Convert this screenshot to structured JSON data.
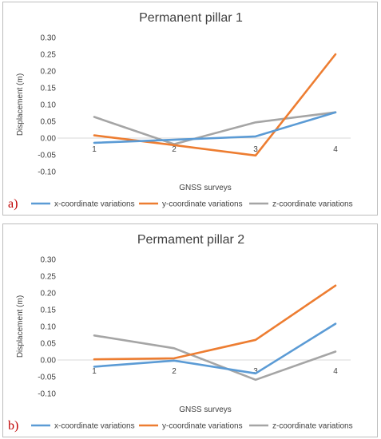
{
  "chart_data": [
    {
      "type": "line",
      "panel_label": "a)",
      "title": "Permanent pillar 1",
      "xlabel": "GNSS surveys",
      "ylabel": "Displacement (m)",
      "categories": [
        "1",
        "2",
        "3",
        "4"
      ],
      "ylim": [
        -0.1,
        0.3
      ],
      "yticks": [
        "0.30",
        "0.25",
        "0.20",
        "0.15",
        "0.10",
        "0.05",
        "0.00",
        "-0.05",
        "-0.10"
      ],
      "grid": false,
      "legend_position": "bottom",
      "series": [
        {
          "name": "x-coordinate variations",
          "color": "#5b9bd5",
          "values": [
            -0.014,
            -0.005,
            0.005,
            0.077
          ]
        },
        {
          "name": "y-coordinate variations",
          "color": "#ed7d31",
          "values": [
            0.008,
            -0.021,
            -0.052,
            0.25
          ]
        },
        {
          "name": "z-coordinate variations",
          "color": "#a5a5a5",
          "values": [
            0.063,
            -0.018,
            0.047,
            0.077
          ]
        }
      ]
    },
    {
      "type": "line",
      "panel_label": "b)",
      "title": "Permament pillar 2",
      "xlabel": "GNSS surveys",
      "ylabel": "Displacement (m)",
      "categories": [
        "1",
        "2",
        "3",
        "4"
      ],
      "ylim": [
        -0.1,
        0.3
      ],
      "yticks": [
        "0.30",
        "0.25",
        "0.20",
        "0.15",
        "0.10",
        "0.05",
        "0.00",
        "-0.05",
        "-0.10"
      ],
      "grid": false,
      "legend_position": "bottom",
      "series": [
        {
          "name": "x-coordinate variations",
          "color": "#5b9bd5",
          "values": [
            -0.02,
            -0.002,
            -0.04,
            0.108
          ]
        },
        {
          "name": "y-coordinate variations",
          "color": "#ed7d31",
          "values": [
            0.002,
            0.005,
            0.06,
            0.222
          ]
        },
        {
          "name": "z-coordinate variations",
          "color": "#a5a5a5",
          "values": [
            0.073,
            0.035,
            -0.059,
            0.025
          ]
        }
      ]
    }
  ]
}
